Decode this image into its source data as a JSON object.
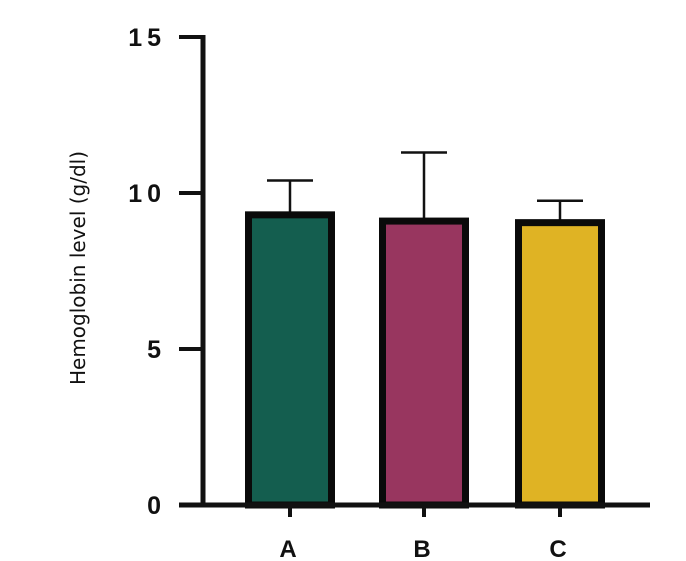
{
  "chart_data": {
    "type": "bar",
    "title": "",
    "xlabel": "",
    "ylabel": "Hemoglobin level (g/dl)",
    "ylim": [
      0,
      15
    ],
    "yticks": [
      0,
      5,
      10,
      15
    ],
    "yticks_labels": [
      "0",
      "5",
      "10",
      "15"
    ],
    "categories": [
      "A",
      "B",
      "C"
    ],
    "values": [
      9.3,
      9.1,
      9.05
    ],
    "error_upper": [
      10.4,
      11.3,
      9.75
    ],
    "colors": [
      "#145e4f",
      "#98365f",
      "#dfb324"
    ],
    "grid": false,
    "legend": "none"
  }
}
